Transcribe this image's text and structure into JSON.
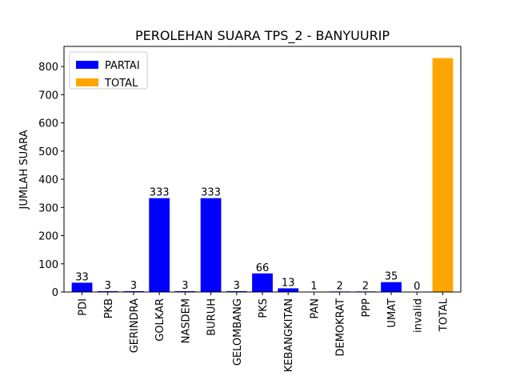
{
  "chart_data": {
    "type": "bar",
    "title": "PEROLEHAN SUARA TPS_2 - BANYUURIP",
    "xlabel": "",
    "ylabel": "JUMLAH SUARA",
    "categories": [
      "PDI",
      "PKB",
      "GERINDRA",
      "GOLKAR",
      "NASDEM",
      "BURUH",
      "GELOMBANG",
      "PKS",
      "KEBANGKITAN",
      "PAN",
      "DEMOKRAT",
      "PPP",
      "UMAT",
      "invalid",
      "TOTAL"
    ],
    "series": [
      {
        "name": "PARTAI",
        "color": "#0000ff",
        "values": [
          33,
          3,
          3,
          333,
          3,
          333,
          3,
          66,
          13,
          1,
          2,
          2,
          35,
          0,
          null
        ],
        "labels": [
          "33",
          "3",
          "3",
          "333",
          "3",
          "333",
          "3",
          "66",
          "13",
          "1",
          "2",
          "2",
          "35",
          "0",
          ""
        ]
      },
      {
        "name": "TOTAL",
        "color": "#ffa500",
        "values": [
          null,
          null,
          null,
          null,
          null,
          null,
          null,
          null,
          null,
          null,
          null,
          null,
          null,
          null,
          830
        ],
        "labels": [
          "",
          "",
          "",
          "",
          "",
          "",
          "",
          "",
          "",
          "",
          "",
          "",
          "",
          "",
          ""
        ]
      }
    ],
    "yticks": [
      0,
      100,
      200,
      300,
      400,
      500,
      600,
      700,
      800
    ],
    "ylim": [
      0,
      871.5
    ],
    "grid": false,
    "legend_position": "top-left"
  }
}
